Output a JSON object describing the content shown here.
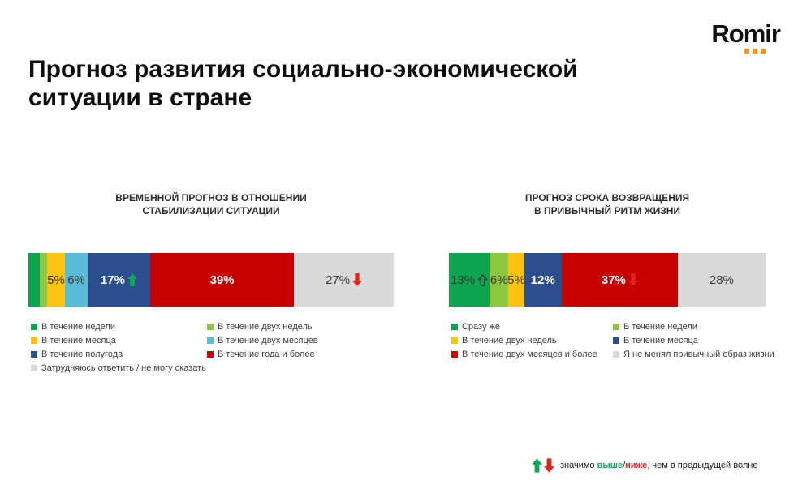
{
  "logo": {
    "text": "Romir",
    "dot_color": "#F7941D"
  },
  "title": "Прогноз развития социально-экономической ситуации в стране",
  "colors": {
    "green": "#0AA54E",
    "lightgreen": "#8DC63F",
    "yellow": "#FFC20E",
    "cyan": "#5BBCD6",
    "navy": "#2B4E8E",
    "red": "#C80000",
    "gray": "#D9D9D9",
    "arrow_green": "#0FA958",
    "arrow_red": "#E2231A"
  },
  "charts": [
    {
      "title_line1": "ВРЕМЕННОЙ ПРОГНОЗ В ОТНОШЕНИИ",
      "title_line2": "СТАБИЛИЗАЦИИ СИТУАЦИИ",
      "legend_columns": [
        [
          {
            "color": "green",
            "label": "В течение недели"
          },
          {
            "color": "yellow",
            "label": "В течение месяца"
          },
          {
            "color": "navy",
            "label": "В течение полугода"
          },
          {
            "color": "gray",
            "label": "Затрудняюсь ответить / не могу сказать"
          }
        ],
        [
          {
            "color": "lightgreen",
            "label": "В течение двух недель"
          },
          {
            "color": "cyan",
            "label": "В течение двух месяцев"
          },
          {
            "color": "red",
            "label": "В течение года и более"
          }
        ]
      ]
    },
    {
      "title_line1": "ПРОГНОЗ СРОКА ВОЗВРАЩЕНИЯ",
      "title_line2": "В ПРИВЫЧНЫЙ РИТМ ЖИЗНИ",
      "legend_columns": [
        [
          {
            "color": "green",
            "label": "Сразу же"
          },
          {
            "color": "yellow",
            "label": "В течение двух недель"
          },
          {
            "color": "red",
            "label": "В течение двух месяцев и более"
          }
        ],
        [
          {
            "color": "lightgreen",
            "label": "В течение недели"
          },
          {
            "color": "navy",
            "label": "В течение месяца"
          },
          {
            "color": "gray",
            "label": "Я не менял привычный образ жизни"
          }
        ]
      ]
    }
  ],
  "chart_data": [
    {
      "type": "bar",
      "variant": "stacked-horizontal-100pct",
      "title": "ВРЕМЕННОЙ ПРОГНОЗ В ОТНОШЕНИИ СТАБИЛИЗАЦИИ СИТУАЦИИ",
      "unit": "%",
      "segments": [
        {
          "label": "В течение недели",
          "value": 3,
          "value_label": "",
          "color": "green",
          "text": "dark"
        },
        {
          "label": "В течение двух недель",
          "value": 2,
          "value_label": "",
          "color": "lightgreen",
          "text": "dark"
        },
        {
          "label": "В течение месяца",
          "value": 5,
          "value_label": "5%",
          "color": "yellow",
          "text": "dark"
        },
        {
          "label": "В течение двух месяцев",
          "value": 6,
          "value_label": "6%",
          "color": "cyan",
          "text": "dark"
        },
        {
          "label": "В течение полугода",
          "value": 17,
          "value_label": "17%",
          "color": "navy",
          "text": "white",
          "arrow": "up-green"
        },
        {
          "label": "В течение года и более",
          "value": 39,
          "value_label": "39%",
          "color": "red",
          "text": "white"
        },
        {
          "label": "Затрудняюсь ответить / не могу сказать",
          "value": 27,
          "value_label": "27%",
          "color": "gray",
          "text": "dark",
          "arrow": "down-red"
        }
      ]
    },
    {
      "type": "bar",
      "variant": "stacked-horizontal-100pct",
      "title": "ПРОГНОЗ СРОКА ВОЗВРАЩЕНИЯ В ПРИВЫЧНЫЙ РИТМ ЖИЗНИ",
      "unit": "%",
      "segments": [
        {
          "label": "Сразу же",
          "value": 13,
          "value_label": "13%",
          "color": "green",
          "text": "dark",
          "arrow": "up-hollow"
        },
        {
          "label": "В течение недели",
          "value": 6,
          "value_label": "6%",
          "color": "lightgreen",
          "text": "dark"
        },
        {
          "label": "В течение двух недель",
          "value": 5,
          "value_label": "5%",
          "color": "yellow",
          "text": "dark"
        },
        {
          "label": "В течение месяца",
          "value": 12,
          "value_label": "12%",
          "color": "navy",
          "text": "white"
        },
        {
          "label": "В течение двух месяцев и более",
          "value": 37,
          "value_label": "37%",
          "color": "red",
          "text": "white",
          "arrow": "down-red"
        },
        {
          "label": "Я не менял привычный образ жизни",
          "value": 28,
          "value_label": "28%",
          "color": "gray",
          "text": "dark"
        }
      ]
    }
  ],
  "footnote": {
    "prefix": "значимо ",
    "higher": "выше",
    "separator": "/",
    "lower": "ниже",
    "suffix": ", чем в предыдущей волне"
  }
}
